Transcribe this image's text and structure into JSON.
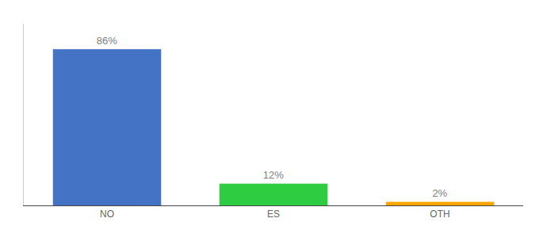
{
  "chart_data": {
    "type": "bar",
    "categories": [
      "NO",
      "ES",
      "OTH"
    ],
    "values": [
      86,
      12,
      2
    ],
    "value_labels": [
      "86%",
      "12%",
      "2%"
    ],
    "colors": [
      "#4472C4",
      "#2ECC40",
      "#FFA500"
    ],
    "ylim": [
      0,
      100
    ],
    "grid": false,
    "data_labels": true,
    "tick_labels": "x"
  }
}
